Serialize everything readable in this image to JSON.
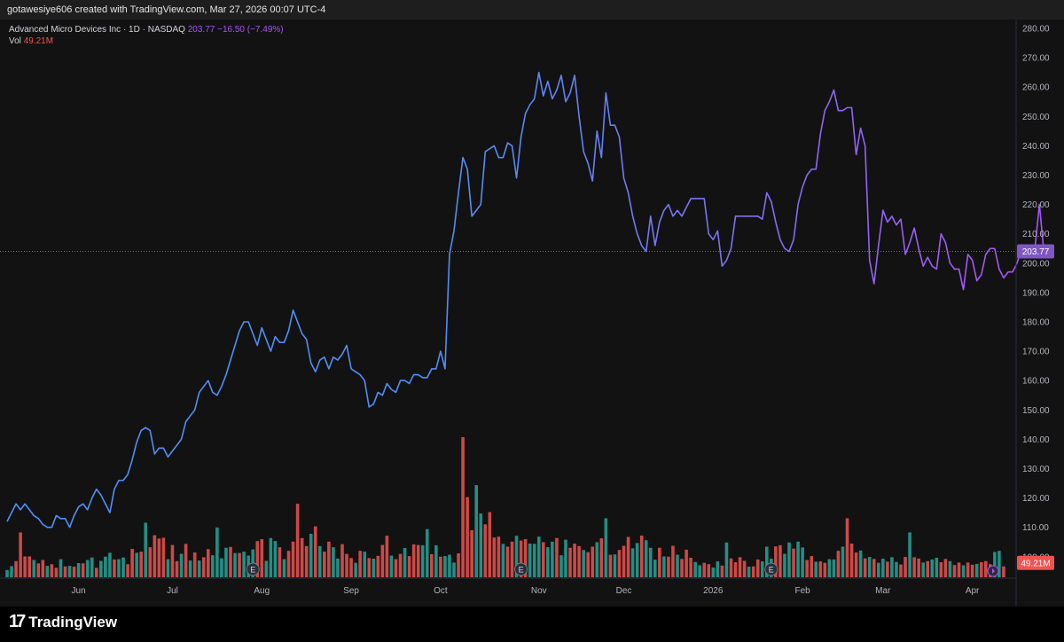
{
  "header": {
    "attribution": "gotawesiye606 created with TradingView.com, Mar 27, 2026 00:07 UTC-4"
  },
  "legend": {
    "symbol": "Advanced Micro Devices Inc · 1D · NASDAQ",
    "price": "203.77",
    "change": "−16.50 (−7.49%)",
    "vol_label": "Vol",
    "vol_value": "49.21M"
  },
  "footer": {
    "brand": "TradingView"
  },
  "colors": {
    "line_start": "#4f8ff7",
    "line_end": "#a855f7",
    "vol_up": "#26a69a",
    "vol_down": "#ef5350"
  },
  "chart_data": {
    "type": "line",
    "title": "Advanced Micro Devices Inc · 1D · NASDAQ",
    "ylim": [
      100,
      280
    ],
    "y_ticks": [
      "280.00",
      "270.00",
      "260.00",
      "250.00",
      "240.00",
      "230.00",
      "220.00",
      "210.00",
      "200.00",
      "190.00",
      "180.00",
      "170.00",
      "160.00",
      "150.00",
      "140.00",
      "130.00",
      "120.00",
      "110.00",
      "100.00"
    ],
    "x_ticks": [
      "Jun",
      "Jul",
      "Aug",
      "Sep",
      "Oct",
      "Nov",
      "Dec",
      "2026",
      "Feb",
      "Mar",
      "Apr"
    ],
    "x_tick_index": [
      16,
      37,
      57,
      77,
      97,
      119,
      138,
      158,
      178,
      196,
      216
    ],
    "last_price_label": "203.77",
    "last_volume_label": "49.21M",
    "series": [
      {
        "values": [
          112,
          115,
          118,
          116,
          118,
          116,
          114,
          113,
          111,
          110,
          110,
          114,
          113,
          113,
          110,
          114,
          117,
          118,
          116,
          120,
          123,
          121,
          118,
          115,
          123,
          126,
          126,
          128,
          133,
          139,
          143,
          144,
          143,
          135,
          137,
          137,
          134,
          136,
          138,
          140,
          146,
          148,
          150,
          156,
          158,
          160,
          156,
          155,
          158,
          162,
          167,
          172,
          177,
          180,
          180,
          176,
          172,
          178,
          174,
          170,
          175,
          173,
          173,
          177,
          184,
          180,
          176,
          174,
          166,
          163,
          167,
          168,
          164,
          168,
          167,
          169,
          172,
          164,
          163,
          162,
          160,
          151,
          152,
          156,
          155,
          159,
          157,
          156,
          160,
          160,
          159,
          162,
          162,
          161,
          161,
          164,
          164,
          170,
          164,
          203,
          211,
          224,
          236,
          232,
          216,
          218,
          220,
          238,
          239,
          240,
          236,
          236,
          241,
          240,
          229,
          243,
          251,
          254,
          256,
          265,
          257,
          262,
          256,
          259,
          264,
          255,
          258,
          264,
          250,
          238,
          234,
          228,
          245,
          236,
          258,
          247,
          247,
          243,
          229,
          224,
          216,
          210,
          206,
          204,
          216,
          206,
          214,
          218,
          220,
          216,
          218,
          216,
          219,
          222,
          222,
          222,
          222,
          210,
          208,
          211,
          199,
          201,
          205,
          216,
          216,
          216,
          216,
          216,
          216,
          215,
          224,
          221,
          214,
          208,
          205,
          204,
          208,
          220,
          226,
          230,
          232,
          232,
          244,
          252,
          255,
          259,
          252,
          252,
          253,
          253,
          237,
          246,
          240,
          201,
          193,
          206,
          218,
          214,
          216,
          213,
          215,
          203,
          207,
          212,
          205,
          199,
          202,
          199,
          198,
          210,
          207,
          200,
          198,
          198,
          191,
          203,
          201,
          194,
          196,
          203,
          205,
          205,
          198,
          195,
          197,
          197,
          200,
          205,
          202,
          204,
          205,
          220,
          204
        ]
      }
    ],
    "volume_scale": [
      0,
      50
    ],
    "volume": [
      {
        "v": 2.6,
        "up": true
      },
      {
        "v": 4.0,
        "up": true
      },
      {
        "v": 5.8,
        "up": false
      },
      {
        "v": 16.1,
        "up": false
      },
      {
        "v": 7.5,
        "up": false
      },
      {
        "v": 7.5,
        "up": false
      },
      {
        "v": 6.2,
        "up": true
      },
      {
        "v": 5.0,
        "up": false
      },
      {
        "v": 6.2,
        "up": false
      },
      {
        "v": 4.1,
        "up": true
      },
      {
        "v": 4.7,
        "up": false
      },
      {
        "v": 3.4,
        "up": false
      },
      {
        "v": 6.5,
        "up": true
      },
      {
        "v": 3.9,
        "up": false
      },
      {
        "v": 4.1,
        "up": true
      },
      {
        "v": 3.8,
        "up": false
      },
      {
        "v": 5.1,
        "up": true
      },
      {
        "v": 5.0,
        "up": false
      },
      {
        "v": 6.2,
        "up": true
      },
      {
        "v": 7.1,
        "up": true
      },
      {
        "v": 3.4,
        "up": false
      },
      {
        "v": 5.9,
        "up": true
      },
      {
        "v": 7.4,
        "up": true
      },
      {
        "v": 8.8,
        "up": true
      },
      {
        "v": 6.4,
        "up": false
      },
      {
        "v": 6.5,
        "up": true
      },
      {
        "v": 7.1,
        "up": true
      },
      {
        "v": 4.7,
        "up": false
      },
      {
        "v": 10.2,
        "up": false
      },
      {
        "v": 8.8,
        "up": true
      },
      {
        "v": 9.2,
        "up": false
      },
      {
        "v": 19.6,
        "up": true
      },
      {
        "v": 10.8,
        "up": false
      },
      {
        "v": 15.1,
        "up": false
      },
      {
        "v": 13.9,
        "up": false
      },
      {
        "v": 14.2,
        "up": false
      },
      {
        "v": 6.5,
        "up": true
      },
      {
        "v": 11.6,
        "up": false
      },
      {
        "v": 5.8,
        "up": false
      },
      {
        "v": 8.4,
        "up": true
      },
      {
        "v": 12.0,
        "up": false
      },
      {
        "v": 6.0,
        "up": true
      },
      {
        "v": 8.9,
        "up": false
      },
      {
        "v": 6.0,
        "up": true
      },
      {
        "v": 7.2,
        "up": false
      },
      {
        "v": 10.1,
        "up": false
      },
      {
        "v": 7.9,
        "up": true
      },
      {
        "v": 17.9,
        "up": true
      },
      {
        "v": 6.8,
        "up": true
      },
      {
        "v": 10.6,
        "up": true
      },
      {
        "v": 10.9,
        "up": false
      },
      {
        "v": 8.7,
        "up": true
      },
      {
        "v": 8.7,
        "up": false
      },
      {
        "v": 9.2,
        "up": true
      },
      {
        "v": 7.8,
        "up": true
      },
      {
        "v": 10.0,
        "up": true
      },
      {
        "v": 13.0,
        "up": false
      },
      {
        "v": 13.7,
        "up": false
      },
      {
        "v": 5.9,
        "up": true
      },
      {
        "v": 14.1,
        "up": true
      },
      {
        "v": 13.0,
        "up": true
      },
      {
        "v": 10.8,
        "up": false
      },
      {
        "v": 6.5,
        "up": true
      },
      {
        "v": 9.5,
        "up": false
      },
      {
        "v": 12.8,
        "up": false
      },
      {
        "v": 26.4,
        "up": false
      },
      {
        "v": 14.1,
        "up": false
      },
      {
        "v": 11.2,
        "up": false
      },
      {
        "v": 15.6,
        "up": true
      },
      {
        "v": 18.3,
        "up": false
      },
      {
        "v": 11.2,
        "up": true
      },
      {
        "v": 9.2,
        "up": false
      },
      {
        "v": 12.8,
        "up": false
      },
      {
        "v": 10.8,
        "up": true
      },
      {
        "v": 6.7,
        "up": true
      },
      {
        "v": 11.9,
        "up": false
      },
      {
        "v": 8.4,
        "up": false
      },
      {
        "v": 6.9,
        "up": false
      },
      {
        "v": 5.2,
        "up": true
      },
      {
        "v": 9.5,
        "up": false
      },
      {
        "v": 9.2,
        "up": true
      },
      {
        "v": 6.9,
        "up": false
      },
      {
        "v": 6.7,
        "up": true
      },
      {
        "v": 7.7,
        "up": false
      },
      {
        "v": 11.6,
        "up": false
      },
      {
        "v": 14.9,
        "up": false
      },
      {
        "v": 7.8,
        "up": true
      },
      {
        "v": 6.5,
        "up": false
      },
      {
        "v": 8.4,
        "up": false
      },
      {
        "v": 10.5,
        "up": true
      },
      {
        "v": 7.6,
        "up": false
      },
      {
        "v": 11.8,
        "up": false
      },
      {
        "v": 11.6,
        "up": false
      },
      {
        "v": 11.5,
        "up": true
      },
      {
        "v": 17.3,
        "up": true
      },
      {
        "v": 8.3,
        "up": false
      },
      {
        "v": 11.5,
        "up": true
      },
      {
        "v": 7.4,
        "up": false
      },
      {
        "v": 7.6,
        "up": true
      },
      {
        "v": 8.1,
        "up": true
      },
      {
        "v": 5.3,
        "up": true
      },
      {
        "v": 8.6,
        "up": false
      },
      {
        "v": 50.3,
        "up": false
      },
      {
        "v": 28.8,
        "up": false
      },
      {
        "v": 16.9,
        "up": false
      },
      {
        "v": 33.1,
        "up": true
      },
      {
        "v": 22.9,
        "up": true
      },
      {
        "v": 19.0,
        "up": false
      },
      {
        "v": 23.4,
        "up": false
      },
      {
        "v": 14.3,
        "up": false
      },
      {
        "v": 14.6,
        "up": false
      },
      {
        "v": 12.0,
        "up": true
      },
      {
        "v": 11.0,
        "up": false
      },
      {
        "v": 12.8,
        "up": false
      },
      {
        "v": 14.9,
        "up": true
      },
      {
        "v": 13.2,
        "up": false
      },
      {
        "v": 13.7,
        "up": false
      },
      {
        "v": 12.1,
        "up": true
      },
      {
        "v": 12.0,
        "up": true
      },
      {
        "v": 14.6,
        "up": true
      },
      {
        "v": 12.6,
        "up": false
      },
      {
        "v": 10.8,
        "up": true
      },
      {
        "v": 12.8,
        "up": true
      },
      {
        "v": 14.1,
        "up": false
      },
      {
        "v": 7.9,
        "up": true
      },
      {
        "v": 13.5,
        "up": true
      },
      {
        "v": 10.6,
        "up": false
      },
      {
        "v": 12.1,
        "up": false
      },
      {
        "v": 11.2,
        "up": false
      },
      {
        "v": 9.8,
        "up": true
      },
      {
        "v": 9.0,
        "up": false
      },
      {
        "v": 11.0,
        "up": false
      },
      {
        "v": 12.6,
        "up": true
      },
      {
        "v": 14.0,
        "up": false
      },
      {
        "v": 21.2,
        "up": true
      },
      {
        "v": 8.1,
        "up": false
      },
      {
        "v": 8.2,
        "up": true
      },
      {
        "v": 9.8,
        "up": false
      },
      {
        "v": 11.3,
        "up": false
      },
      {
        "v": 14.5,
        "up": false
      },
      {
        "v": 10.4,
        "up": true
      },
      {
        "v": 12.3,
        "up": true
      },
      {
        "v": 15.0,
        "up": false
      },
      {
        "v": 13.3,
        "up": true
      },
      {
        "v": 10.6,
        "up": true
      },
      {
        "v": 6.3,
        "up": true
      },
      {
        "v": 10.6,
        "up": false
      },
      {
        "v": 7.5,
        "up": true
      },
      {
        "v": 7.4,
        "up": false
      },
      {
        "v": 11.3,
        "up": false
      },
      {
        "v": 8.1,
        "up": true
      },
      {
        "v": 6.6,
        "up": false
      },
      {
        "v": 9.9,
        "up": false
      },
      {
        "v": 7.0,
        "up": false
      },
      {
        "v": 5.5,
        "up": true
      },
      {
        "v": 4.3,
        "up": true
      },
      {
        "v": 5.2,
        "up": false
      },
      {
        "v": 4.7,
        "up": false
      },
      {
        "v": 3.5,
        "up": true
      },
      {
        "v": 5.7,
        "up": true
      },
      {
        "v": 4.2,
        "up": false
      },
      {
        "v": 12.5,
        "up": true
      },
      {
        "v": 6.8,
        "up": false
      },
      {
        "v": 5.4,
        "up": false
      },
      {
        "v": 7.2,
        "up": false
      },
      {
        "v": 5.9,
        "up": false
      },
      {
        "v": 3.8,
        "up": true
      },
      {
        "v": 3.9,
        "up": false
      },
      {
        "v": 6.4,
        "up": false
      },
      {
        "v": 5.7,
        "up": true
      },
      {
        "v": 11.0,
        "up": true
      },
      {
        "v": 6.7,
        "up": true
      },
      {
        "v": 11.1,
        "up": false
      },
      {
        "v": 11.5,
        "up": false
      },
      {
        "v": 8.4,
        "up": true
      },
      {
        "v": 12.5,
        "up": true
      },
      {
        "v": 10.3,
        "up": false
      },
      {
        "v": 12.8,
        "up": true
      },
      {
        "v": 10.7,
        "up": true
      },
      {
        "v": 6.2,
        "up": false
      },
      {
        "v": 7.6,
        "up": false
      },
      {
        "v": 5.6,
        "up": true
      },
      {
        "v": 5.7,
        "up": false
      },
      {
        "v": 5.2,
        "up": false
      },
      {
        "v": 6.5,
        "up": true
      },
      {
        "v": 6.4,
        "up": true
      },
      {
        "v": 9.5,
        "up": false
      },
      {
        "v": 11.0,
        "up": true
      },
      {
        "v": 21.2,
        "up": false
      },
      {
        "v": 12.1,
        "up": false
      },
      {
        "v": 8.9,
        "up": false
      },
      {
        "v": 9.6,
        "up": true
      },
      {
        "v": 6.8,
        "up": false
      },
      {
        "v": 7.3,
        "up": true
      },
      {
        "v": 6.6,
        "up": false
      },
      {
        "v": 5.2,
        "up": true
      },
      {
        "v": 6.7,
        "up": true
      },
      {
        "v": 5.6,
        "up": false
      },
      {
        "v": 7.2,
        "up": true
      },
      {
        "v": 5.5,
        "up": true
      },
      {
        "v": 4.6,
        "up": false
      },
      {
        "v": 7.3,
        "up": false
      },
      {
        "v": 16.1,
        "up": true
      },
      {
        "v": 7.2,
        "up": false
      },
      {
        "v": 6.7,
        "up": false
      },
      {
        "v": 5.3,
        "up": true
      },
      {
        "v": 5.8,
        "up": false
      },
      {
        "v": 6.4,
        "up": true
      },
      {
        "v": 7.0,
        "up": true
      },
      {
        "v": 5.4,
        "up": false
      },
      {
        "v": 6.6,
        "up": false
      },
      {
        "v": 5.8,
        "up": true
      },
      {
        "v": 4.4,
        "up": false
      },
      {
        "v": 5.3,
        "up": false
      },
      {
        "v": 4.3,
        "up": true
      },
      {
        "v": 5.3,
        "up": false
      },
      {
        "v": 4.5,
        "up": false
      },
      {
        "v": 4.8,
        "up": true
      },
      {
        "v": 5.4,
        "up": false
      },
      {
        "v": 5.8,
        "up": false
      },
      {
        "v": 4.7,
        "up": false
      },
      {
        "v": 9.1,
        "up": true
      },
      {
        "v": 9.5,
        "up": true
      },
      {
        "v": 3.9,
        "up": false
      }
    ],
    "event_badge_index": [
      55,
      115,
      171
    ]
  }
}
